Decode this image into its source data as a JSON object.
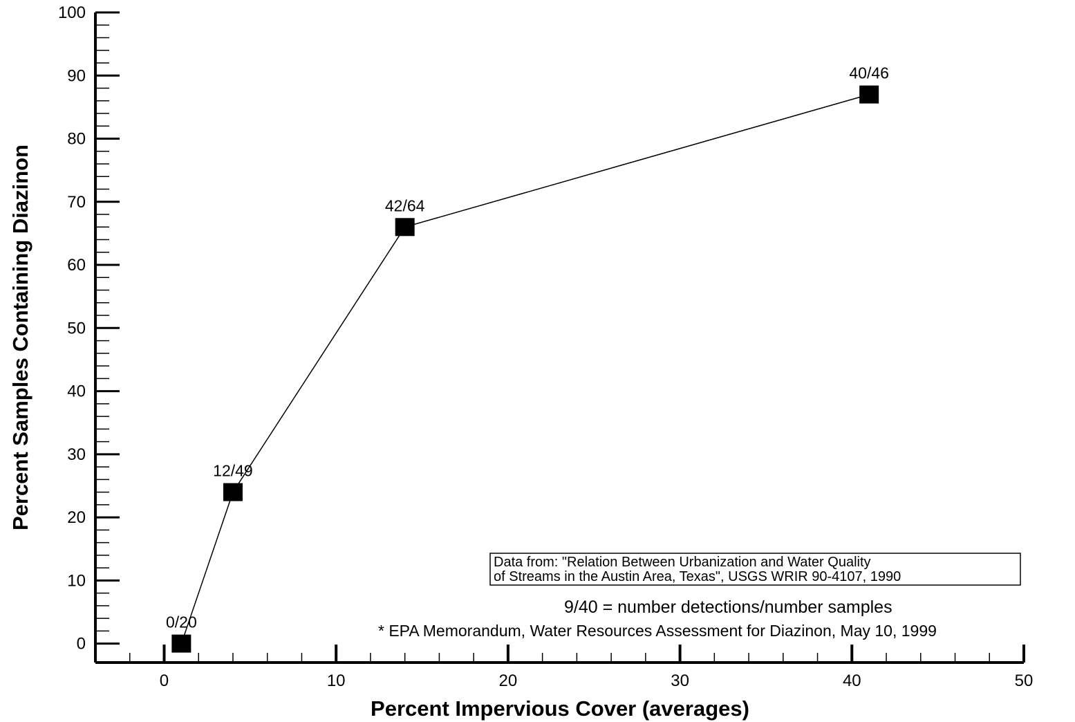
{
  "chart_data": {
    "type": "line",
    "title": "",
    "xlabel": "Percent Impervious Cover (averages)",
    "ylabel": "Percent Samples Containing Diazinon",
    "xlim": [
      -4,
      50
    ],
    "ylim": [
      -3,
      100
    ],
    "x_ticks": [
      0,
      10,
      20,
      30,
      40,
      50
    ],
    "y_ticks": [
      0,
      10,
      20,
      30,
      40,
      50,
      60,
      70,
      80,
      90,
      100
    ],
    "grid": false,
    "marker": "square",
    "colors": {
      "line": "#000000",
      "marker": "#000000"
    },
    "series": [
      {
        "x": [
          1,
          4,
          14,
          41
        ],
        "y": [
          0,
          24,
          66,
          87
        ],
        "labels": [
          "0/20",
          "12/49",
          "42/64",
          "40/46"
        ]
      }
    ],
    "annotations": {
      "source_box": [
        "Data from: \"Relation Between Urbanization and Water Quality",
        "of Streams in the Austin Area, Texas\", USGS WRIR 90-4107, 1990"
      ],
      "legend_note": "9/40 = number detections/number samples",
      "footnote": "* EPA Memorandum, Water Resources Assessment for Diazinon, May 10, 1999"
    }
  }
}
